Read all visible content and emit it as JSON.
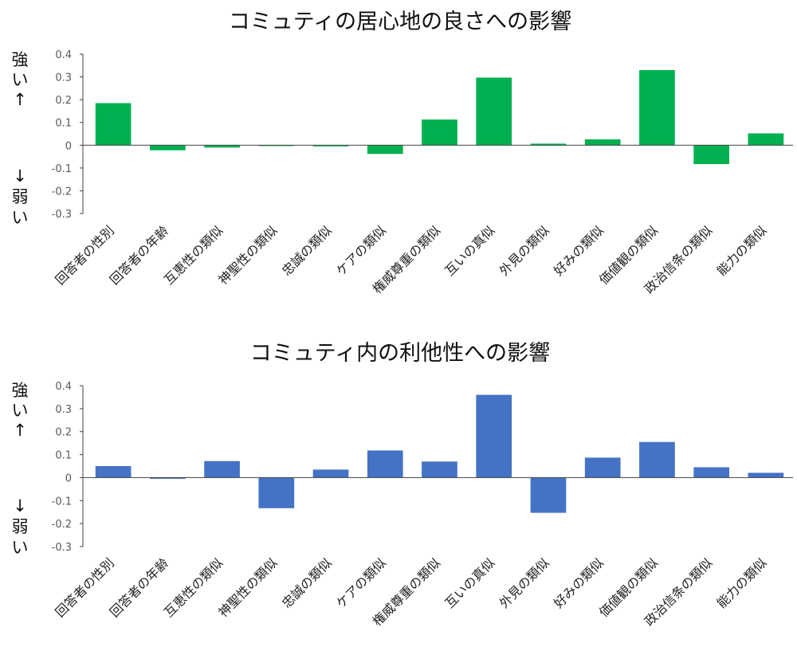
{
  "chart_data": [
    {
      "type": "bar",
      "title": "コミュティの居心地の良さへの影響",
      "categories": [
        "回答者の性別",
        "回答者の年齢",
        "互恵性の類似",
        "神聖性の類似",
        "忠誠の類似",
        "ケアの類似",
        "権威尊重の類似",
        "互いの真似",
        "外見の類似",
        "好みの類似",
        "価値観の類似",
        "政治信条の類似",
        "能力の類似"
      ],
      "values": [
        0.185,
        -0.022,
        -0.01,
        -0.002,
        -0.005,
        -0.038,
        0.113,
        0.297,
        0.007,
        0.026,
        0.33,
        -0.083,
        0.052
      ],
      "ylim": [
        -0.3,
        0.4
      ],
      "yticks": [
        "0.4",
        "0.3",
        "0.2",
        "0.1",
        "0",
        "-0.1",
        "-0.2",
        "-0.3"
      ],
      "y_top_label": [
        "強",
        "い",
        "↑"
      ],
      "y_bottom_label": [
        "↓",
        "弱",
        "い"
      ],
      "color": "#00B050",
      "grid": false,
      "legend": "none"
    },
    {
      "type": "bar",
      "title": "コミュティ内の利他性への影響",
      "categories": [
        "回答者の性別",
        "回答者の年齢",
        "互恵性の類似",
        "神聖性の類似",
        "忠誠の類似",
        "ケアの類似",
        "権威尊重の類似",
        "互いの真似",
        "外見の類似",
        "好みの類似",
        "価値観の類似",
        "政治信条の類似",
        "能力の類似"
      ],
      "values": [
        0.05,
        -0.005,
        0.072,
        -0.133,
        0.035,
        0.118,
        0.07,
        0.36,
        -0.153,
        0.087,
        0.155,
        0.045,
        0.021
      ],
      "ylim": [
        -0.3,
        0.4
      ],
      "yticks": [
        "0.4",
        "0.3",
        "0.2",
        "0.1",
        "0",
        "-0.1",
        "-0.2",
        "-0.3"
      ],
      "y_top_label": [
        "強",
        "い",
        "↑"
      ],
      "y_bottom_label": [
        "↓",
        "弱",
        "い"
      ],
      "color": "#4472C4",
      "grid": false,
      "legend": "none"
    }
  ]
}
